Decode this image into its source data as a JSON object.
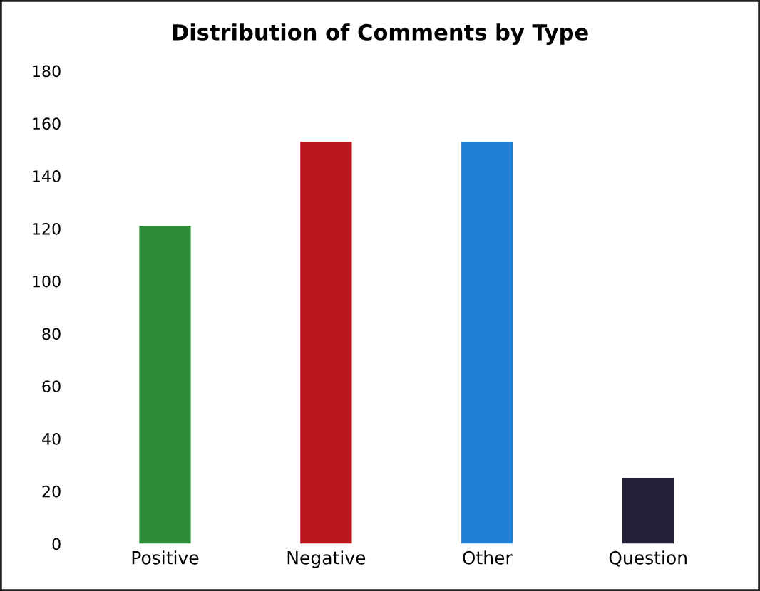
{
  "chart_data": {
    "type": "bar",
    "title": "Distribution of Comments by Type",
    "categories": [
      "Positive",
      "Negative",
      "Other",
      "Question"
    ],
    "values": [
      121,
      153,
      153,
      25
    ],
    "colors": [
      "#2e8b3a",
      "#b8161e",
      "#1f7fd6",
      "#24203a"
    ],
    "ylim": [
      0,
      180
    ],
    "yticks": [
      0,
      20,
      40,
      60,
      80,
      100,
      120,
      140,
      160,
      180
    ],
    "grid": false
  }
}
